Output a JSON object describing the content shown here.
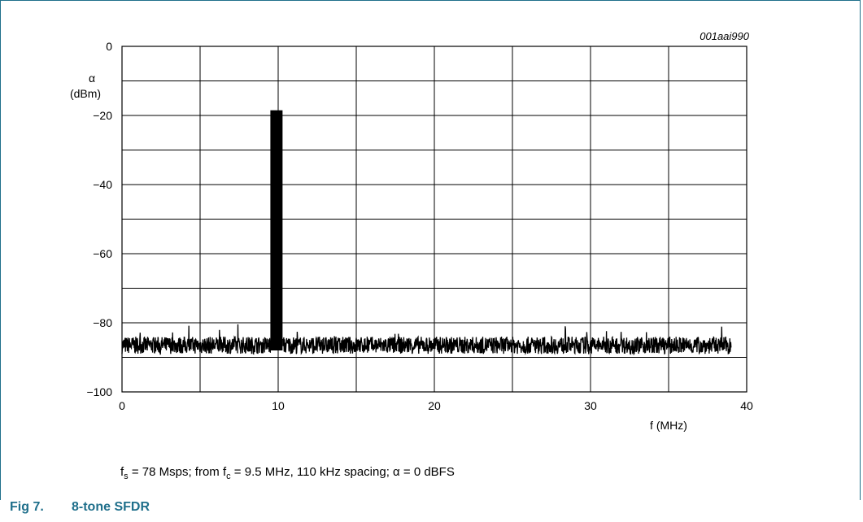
{
  "figure_code": "001aai990",
  "note": {
    "fs_symbol": "f",
    "fs_sub": "s",
    "fs_text": " = 78 Msps; from ",
    "fc_symbol": "f",
    "fc_sub": "c",
    "fc_text": " = 9.5 MHz, 110 kHz spacing; ",
    "alpha_symbol": "α",
    "alpha_text": " = 0 dBFS"
  },
  "caption": {
    "number": "Fig 7.",
    "title": "8-tone SFDR"
  },
  "colors": {
    "accent": "#1f6f8b",
    "trace": "#000000",
    "grid": "#000000"
  },
  "chart_data": {
    "type": "line",
    "title": "",
    "xlabel": "f (MHz)",
    "ylabel_symbol": "α",
    "ylabel_unit": "(dBm)",
    "xlim": [
      0,
      40
    ],
    "ylim": [
      -100,
      0
    ],
    "xticks": [
      0,
      10,
      20,
      30,
      40
    ],
    "yticks": [
      0,
      -20,
      -40,
      -60,
      -80,
      -100
    ],
    "xtick_labels": [
      "0",
      "10",
      "20",
      "30",
      "40"
    ],
    "ytick_labels": [
      "0",
      "−20",
      "−40",
      "−60",
      "−80",
      "−100"
    ],
    "x_grid_step": 5,
    "y_grid_step": 10,
    "grid": true,
    "legend": "none",
    "series": [
      {
        "values_description_omitted": true,
        "x": [
          0.0,
          1.0,
          2.0,
          3.0,
          4.0,
          5.0,
          6.0,
          7.0,
          8.0,
          9.0,
          9.5,
          9.6,
          9.7,
          9.8,
          9.9,
          10.0,
          10.1,
          10.3,
          11.0,
          12.0,
          13.0,
          14.0,
          15.0,
          16.0,
          17.0,
          18.0,
          19.0,
          20.0,
          21.0,
          22.0,
          23.0,
          24.0,
          25.0,
          26.0,
          27.0,
          28.0,
          29.0,
          30.0,
          31.0,
          32.0,
          33.0,
          34.0,
          35.0,
          36.0,
          37.0,
          38.0,
          39.0
        ],
        "y": [
          -86.5,
          -86.2,
          -86.8,
          -86.4,
          -86.6,
          -86.3,
          -86.7,
          -86.5,
          -86.2,
          -86.6,
          -18.5,
          -18.5,
          -18.5,
          -18.5,
          -18.5,
          -18.5,
          -18.5,
          -86.4,
          -86.5,
          -86.3,
          -86.7,
          -86.4,
          -86.6,
          -86.2,
          -86.5,
          -86.8,
          -86.4,
          -86.3,
          -86.6,
          -86.5,
          -86.7,
          -86.4,
          -86.5,
          -86.3,
          -86.6,
          -86.8,
          -86.4,
          -86.5,
          -86.3,
          -86.6,
          -86.5,
          -86.7,
          -86.4,
          -86.6,
          -86.3,
          -86.8,
          -86.5
        ]
      }
    ],
    "noise_floor": -86.5,
    "noise_spread": 2.5,
    "tone_band": [
      9.5,
      10.28
    ],
    "tone_level": -18.5,
    "x_end": 39.0
  }
}
